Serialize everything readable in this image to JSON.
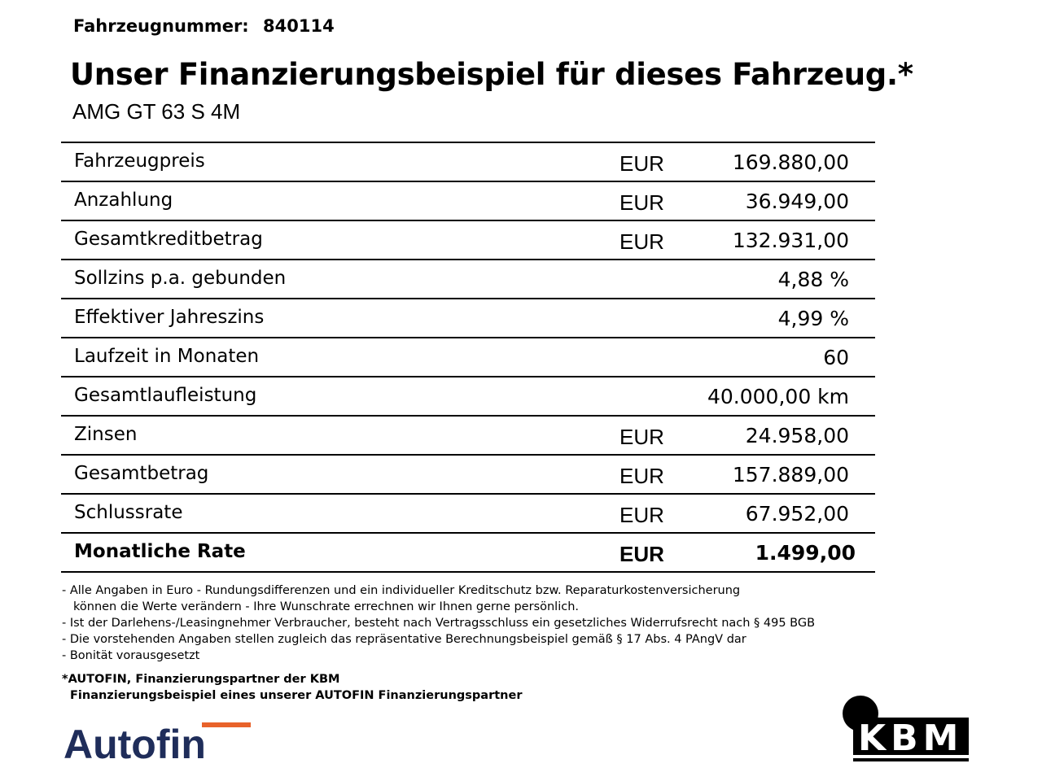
{
  "header": {
    "vehicle_number_label": "Fahrzeugnummer:",
    "vehicle_number": "840114",
    "title": "Unser Finanzierungsbeispiel für dieses Fahrzeug.*",
    "subtitle": "AMG GT 63 S 4M"
  },
  "table": {
    "rows": [
      {
        "label": "Fahrzeugpreis",
        "currency": "EUR",
        "value": "169.880,00"
      },
      {
        "label": "Anzahlung",
        "currency": "EUR",
        "value": "36.949,00"
      },
      {
        "label": "Gesamtkreditbetrag",
        "currency": "EUR",
        "value": "132.931,00"
      },
      {
        "label": "Sollzins p.a. gebunden",
        "currency": "",
        "value": "4,88 %"
      },
      {
        "label": "Effektiver Jahreszins",
        "currency": "",
        "value": "4,99 %"
      },
      {
        "label": "Laufzeit in Monaten",
        "currency": "",
        "value": "60"
      },
      {
        "label": "Gesamtlaufleistung",
        "currency": "",
        "value": "40.000,00 km"
      },
      {
        "label": "Zinsen",
        "currency": "EUR",
        "value": "24.958,00"
      },
      {
        "label": "Gesamtbetrag",
        "currency": "EUR",
        "value": "157.889,00"
      },
      {
        "label": "Schlussrate",
        "currency": "EUR",
        "value": "67.952,00"
      },
      {
        "label": "Monatliche Rate",
        "currency": "EUR",
        "value": "1.499,00"
      }
    ]
  },
  "notes": [
    "- Alle Angaben in Euro - Rundungsdifferenzen und ein individueller Kreditschutz bzw. Reparaturkostenversicherung",
    "können die Werte verändern - Ihre Wunschrate errechnen wir Ihnen gerne persönlich.",
    "- Ist der Darlehens-/Leasingnehmer Verbraucher, besteht nach Vertragsschluss ein gesetzliches Widerrufsrecht nach § 495 BGB",
    "- Die vorstehenden Angaben stellen zugleich das repräsentative Berechnungsbeispiel gemäß § 17 Abs. 4 PAngV dar",
    "- Bonität vorausgesetzt"
  ],
  "footnote": {
    "line1": "*AUTOFIN, Finanzierungspartner der KBM",
    "line2": "Finanzierungsbeispiel eines unserer AUTOFIN Finanzierungspartner"
  },
  "logos": {
    "autofin": {
      "text": "Autofin",
      "color": "#1f2d5a",
      "accent": "#e8622a"
    },
    "kbm": {
      "text": "KBM",
      "color": "#000000"
    }
  }
}
